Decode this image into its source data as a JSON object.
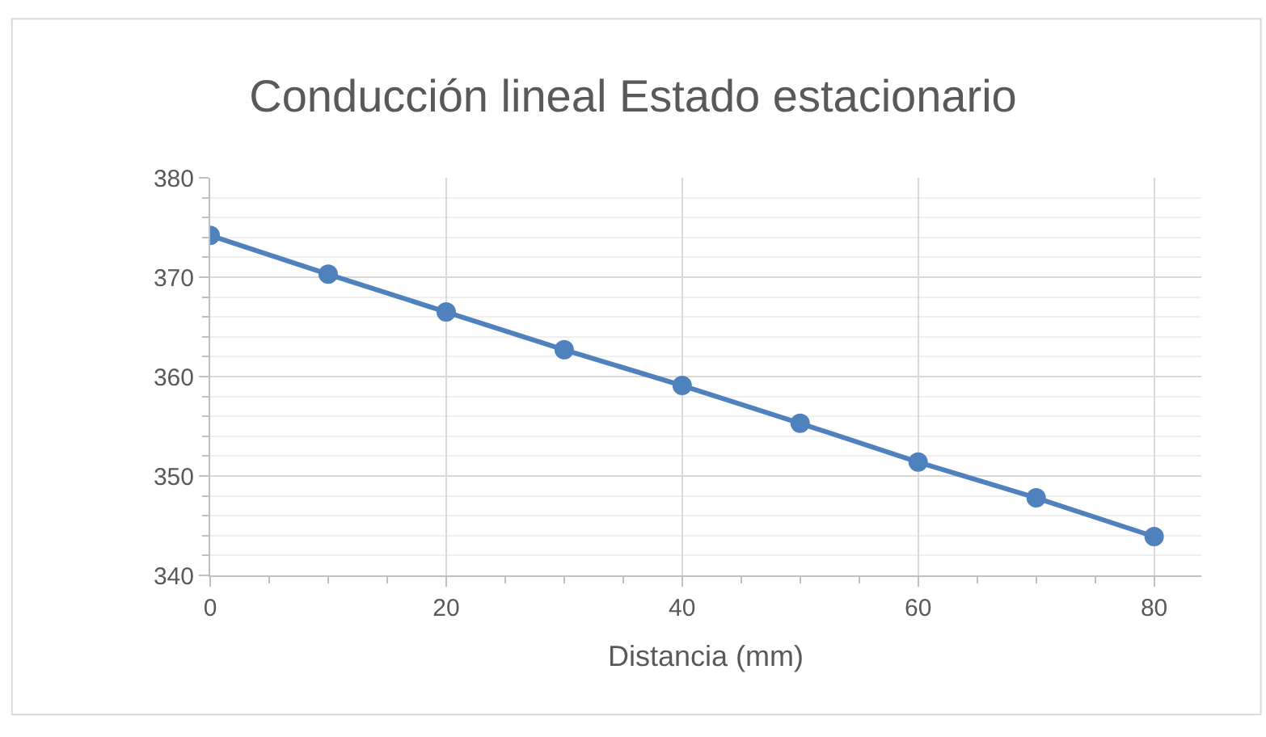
{
  "chart_data": {
    "type": "line",
    "title": "Conducción lineal Estado estacionario",
    "xlabel": "Distancia (mm)",
    "x": [
      0,
      10,
      20,
      30,
      40,
      50,
      60,
      70,
      80
    ],
    "series": [
      {
        "color": "#4f81bd",
        "values": [
          374.2,
          370.3,
          366.5,
          362.7,
          359.1,
          355.3,
          351.4,
          347.8,
          343.9
        ]
      }
    ],
    "xlim": [
      0,
      84
    ],
    "xticks": [
      0,
      20,
      40,
      60,
      80
    ],
    "ylim": [
      340,
      380
    ],
    "yticks": [
      340,
      350,
      360,
      370,
      380
    ],
    "grid": true,
    "marker": "circle",
    "line_style": "solid"
  }
}
